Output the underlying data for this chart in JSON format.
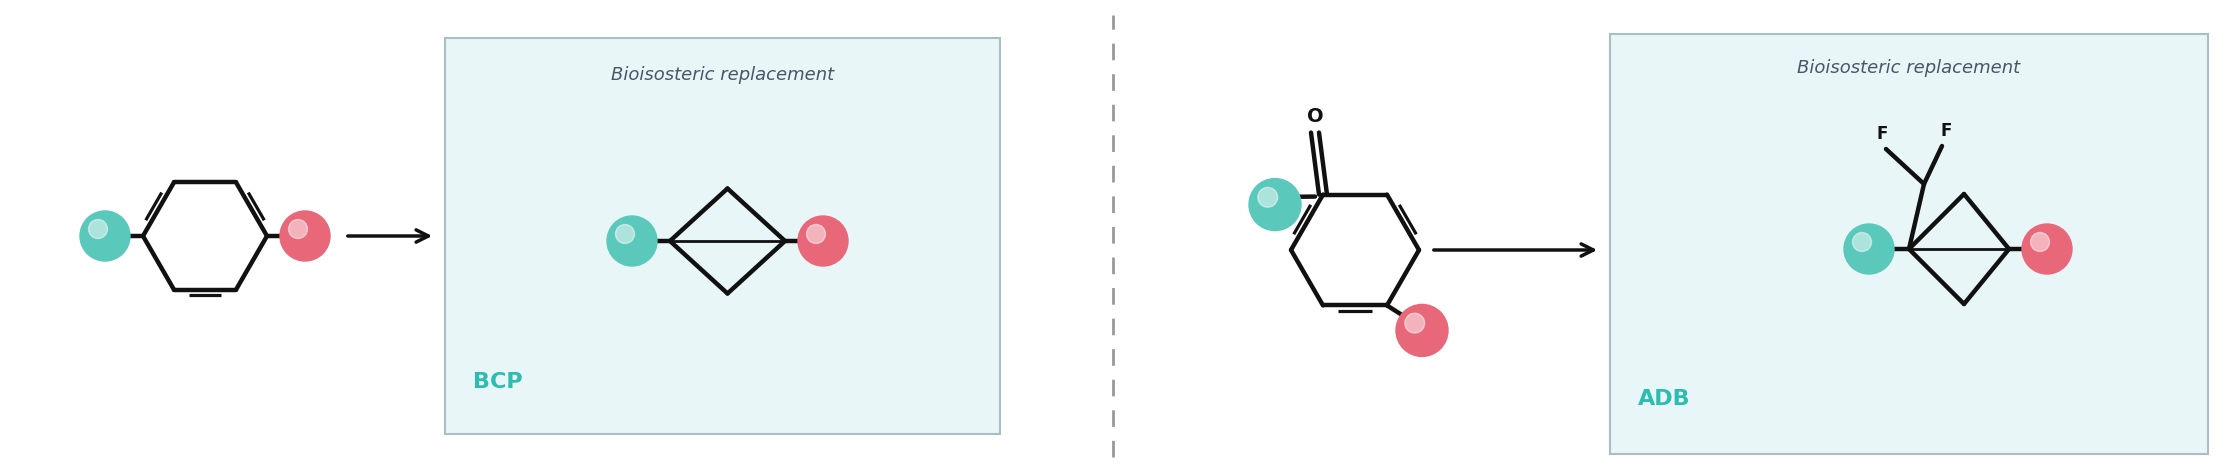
{
  "bg_color": "#ffffff",
  "teal_color": "#5BC8BC",
  "pink_color": "#E8687A",
  "box_bg": "#E8F6F8",
  "box_edge": "#AABFC5",
  "text_color_title": "#4a5568",
  "text_color_label": "#2DBCB0",
  "dashed_line_color": "#999999",
  "bond_color": "#111111",
  "label_bioisosteric": "Bioisosteric replacement",
  "label_bcp": "BCP",
  "label_adb": "ADB",
  "label_F": "F",
  "label_O": "O"
}
